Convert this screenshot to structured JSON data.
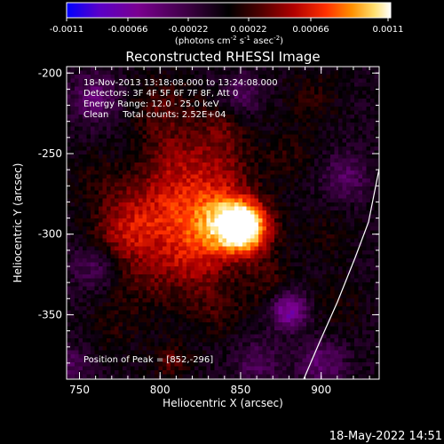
{
  "colorbar": {
    "ticks": [
      "-0.0011",
      "-0.00066",
      "-0.00022",
      "0.00022",
      "0.00066",
      "0.0011"
    ],
    "unit_prefix": "(photons cm",
    "unit_exp1": "-2",
    "unit_mid": " s",
    "unit_exp2": "-1",
    "unit_suffix": " asec",
    "unit_exp3": "-2",
    "unit_close": ")",
    "colormap_stops": [
      "#0000ff",
      "#5a00c8",
      "#7a0090",
      "#3a0040",
      "#000000",
      "#500000",
      "#b00000",
      "#ff3000",
      "#ff9000",
      "#ffe070",
      "#ffffff"
    ]
  },
  "plot": {
    "title": "Reconstructed RHESSI Image",
    "info_lines": [
      "18-Nov-2013 13:18:08.000 to 13:24:08.000",
      "Detectors: 3F 4F 5F 6F 7F 8F, Att 0",
      "Energy Range: 12.0 - 25.0 keV",
      "Clean     Total counts: 2.52E+04"
    ],
    "peak_label": "Position of Peak = [852,-296]",
    "xlabel": "Heliocentric X (arcsec)",
    "ylabel": "Heliocentric Y (arcsec)",
    "x_ticks": [
      "750",
      "800",
      "850",
      "900"
    ],
    "y_ticks": [
      "-200",
      "-250",
      "-300",
      "-350"
    ],
    "x_range": [
      742,
      936
    ],
    "y_range": [
      -390,
      -196
    ],
    "peak": [
      852,
      -296
    ]
  },
  "footer": {
    "timestamp": "18-May-2022 14:51"
  }
}
